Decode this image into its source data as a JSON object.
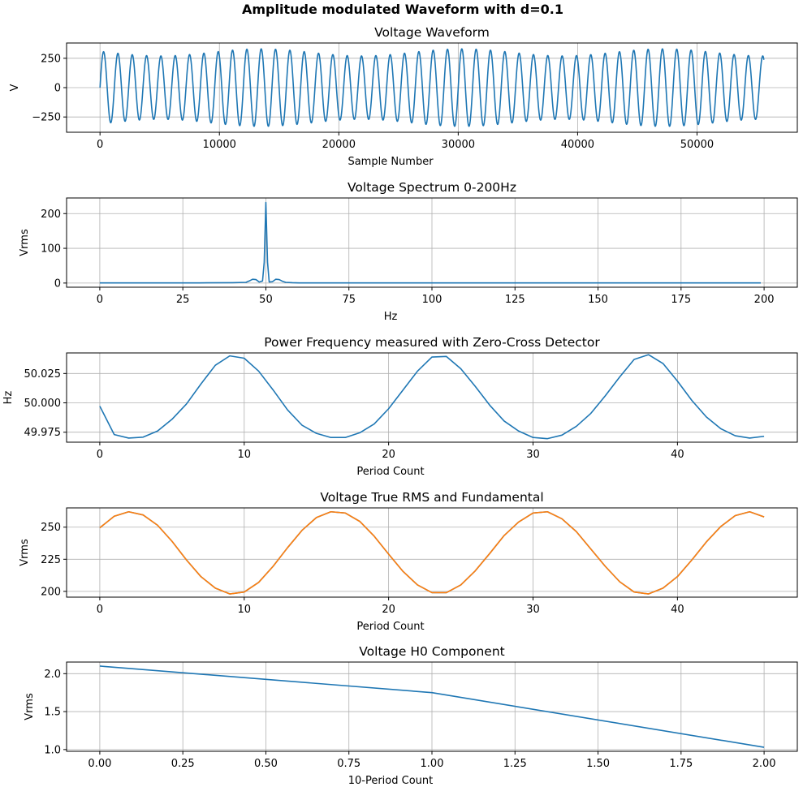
{
  "figure": {
    "title": "Amplitude modulated Waveform with d=0.1"
  },
  "colors": {
    "series_blue": "#1f77b4",
    "series_orange": "#ff7f0e",
    "grid": "#b0b0b0",
    "axes": "#000000",
    "background": "#ffffff"
  },
  "chart_data": [
    {
      "type": "line",
      "title": "Voltage Waveform",
      "xlabel": "Sample Number",
      "ylabel": "V",
      "xlim": [
        -2800,
        58400
      ],
      "ylim": [
        -380,
        380
      ],
      "xticks": [
        0,
        10000,
        20000,
        30000,
        40000,
        50000
      ],
      "xticklabels": [
        "0",
        "10000",
        "20000",
        "30000",
        "40000",
        "50000"
      ],
      "yticks": [
        -250,
        0,
        250
      ],
      "yticklabels": [
        "−250",
        "0",
        "250"
      ],
      "grid": true,
      "generator": {
        "kind": "am_sine",
        "samples": 55600,
        "carrier_cycles": 46.33,
        "peak_amplitude": 330,
        "modulation_depth": 0.1,
        "modulation_cycles": 3.3,
        "modulation_phase": 0.45
      },
      "series": [
        {
          "x": [],
          "y": [],
          "color": "#1f77b4"
        }
      ]
    },
    {
      "type": "line",
      "title": "Voltage Spectrum 0-200Hz",
      "xlabel": "Hz",
      "ylabel": "Vrms",
      "xlim": [
        -10,
        210
      ],
      "ylim": [
        -12,
        245
      ],
      "xticks": [
        0,
        25,
        50,
        75,
        100,
        125,
        150,
        175,
        200
      ],
      "xticklabels": [
        "0",
        "25",
        "50",
        "75",
        "100",
        "125",
        "150",
        "175",
        "200"
      ],
      "yticks": [
        0,
        100,
        200
      ],
      "yticklabels": [
        "0",
        "100",
        "200"
      ],
      "grid": true,
      "series": [
        {
          "color": "#1f77b4",
          "x": [
            0,
            10,
            20,
            30,
            40,
            44,
            45,
            46,
            47,
            48,
            49,
            49.5,
            50,
            50.5,
            51,
            52,
            53,
            54,
            55,
            56,
            58,
            60,
            70,
            80,
            100,
            150,
            199
          ],
          "y": [
            0.5,
            0.5,
            0.5,
            0.5,
            1,
            2,
            6,
            11,
            10,
            3,
            6,
            60,
            232,
            60,
            3,
            4,
            11,
            10,
            5,
            2,
            1,
            0.5,
            0.5,
            0.5,
            0.5,
            0.5,
            0.5
          ]
        }
      ]
    },
    {
      "type": "line",
      "title": "Power Frequency measured with Zero-Cross Detector",
      "xlabel": "Period Count",
      "ylabel": "Hz",
      "xlim": [
        -2.3,
        48.3
      ],
      "ylim": [
        49.9665,
        50.0425
      ],
      "xticks": [
        0,
        10,
        20,
        30,
        40
      ],
      "xticklabels": [
        "0",
        "10",
        "20",
        "30",
        "40"
      ],
      "yticks": [
        49.975,
        50.0,
        50.025
      ],
      "yticklabels": [
        "49.975",
        "50.000",
        "50.025"
      ],
      "grid": true,
      "series": [
        {
          "color": "#1f77b4",
          "x": [
            0,
            1,
            2,
            3,
            4,
            5,
            6,
            7,
            8,
            9,
            10,
            11,
            12,
            13,
            14,
            15,
            16,
            17,
            18,
            19,
            20,
            21,
            22,
            23,
            24,
            25,
            26,
            27,
            28,
            29,
            30,
            31,
            32,
            33,
            34,
            35,
            36,
            37,
            38,
            39,
            40,
            41,
            42,
            43,
            44,
            45,
            46
          ],
          "y": [
            49.9972,
            49.973,
            49.97,
            49.9708,
            49.976,
            49.986,
            49.999,
            50.016,
            50.032,
            50.04,
            50.038,
            50.027,
            50.011,
            49.994,
            49.981,
            49.974,
            49.9705,
            49.9705,
            49.9745,
            49.982,
            49.995,
            50.011,
            50.027,
            50.039,
            50.0395,
            50.029,
            50.014,
            49.998,
            49.9845,
            49.976,
            49.9705,
            49.9695,
            49.9725,
            49.98,
            49.991,
            50.006,
            50.022,
            50.037,
            50.041,
            50.0335,
            50.0185,
            50.002,
            49.988,
            49.978,
            49.972,
            49.97,
            49.9715
          ]
        }
      ]
    },
    {
      "type": "line",
      "title": "Voltage True RMS and Fundamental",
      "xlabel": "Period Count",
      "ylabel": "Vrms",
      "xlim": [
        -2.3,
        48.3
      ],
      "ylim": [
        195.5,
        265.0
      ],
      "xticks": [
        0,
        10,
        20,
        30,
        40
      ],
      "xticklabels": [
        "0",
        "10",
        "20",
        "30",
        "40"
      ],
      "yticks": [
        200,
        225,
        250
      ],
      "yticklabels": [
        "200",
        "225",
        "250"
      ],
      "grid": true,
      "series": [
        {
          "color": "#1f77b4",
          "x": [
            0,
            1,
            2,
            3,
            4,
            5,
            6,
            7,
            8,
            9,
            10,
            11,
            12,
            13,
            14,
            15,
            16,
            17,
            18,
            19,
            20,
            21,
            22,
            23,
            24,
            25,
            26,
            27,
            28,
            29,
            30,
            31,
            32,
            33,
            34,
            35,
            36,
            37,
            38,
            39,
            40,
            41,
            42,
            43,
            44,
            45,
            46
          ],
          "y": [
            249.5,
            258.5,
            262.0,
            259.5,
            251.5,
            239.0,
            224.5,
            211.5,
            202.5,
            198.0,
            199.5,
            207.0,
            219.5,
            234.0,
            247.5,
            257.5,
            262.0,
            261.0,
            254.5,
            243.0,
            229.0,
            215.5,
            205.0,
            199.0,
            199.0,
            205.0,
            216.0,
            229.5,
            243.5,
            254.0,
            261.0,
            262.0,
            256.5,
            246.5,
            233.0,
            219.5,
            207.5,
            199.5,
            198.0,
            202.5,
            211.5,
            224.5,
            238.5,
            250.5,
            259.0,
            262.0,
            258.0
          ]
        },
        {
          "color": "#ff7f0e",
          "x": [
            0,
            1,
            2,
            3,
            4,
            5,
            6,
            7,
            8,
            9,
            10,
            11,
            12,
            13,
            14,
            15,
            16,
            17,
            18,
            19,
            20,
            21,
            22,
            23,
            24,
            25,
            26,
            27,
            28,
            29,
            30,
            31,
            32,
            33,
            34,
            35,
            36,
            37,
            38,
            39,
            40,
            41,
            42,
            43,
            44,
            45,
            46
          ],
          "y": [
            249.5,
            258.5,
            262.0,
            259.5,
            251.5,
            239.0,
            224.5,
            211.5,
            202.5,
            198.0,
            199.5,
            207.0,
            219.5,
            234.0,
            247.5,
            257.5,
            262.0,
            261.0,
            254.5,
            243.0,
            229.0,
            215.5,
            205.0,
            199.0,
            199.0,
            205.0,
            216.0,
            229.5,
            243.5,
            254.0,
            261.0,
            262.0,
            256.5,
            246.5,
            233.0,
            219.5,
            207.5,
            199.5,
            198.0,
            202.5,
            211.5,
            224.5,
            238.5,
            250.5,
            259.0,
            262.0,
            258.0
          ]
        }
      ]
    },
    {
      "type": "line",
      "title": "Voltage H0 Component",
      "xlabel": "10-Period Count",
      "ylabel": "Vrms",
      "xlim": [
        -0.1,
        2.1
      ],
      "ylim": [
        0.977,
        2.153
      ],
      "xticks": [
        0.0,
        0.25,
        0.5,
        0.75,
        1.0,
        1.25,
        1.5,
        1.75,
        2.0
      ],
      "xticklabels": [
        "0.00",
        "0.25",
        "0.50",
        "0.75",
        "1.00",
        "1.25",
        "1.50",
        "1.75",
        "2.00"
      ],
      "yticks": [
        1.0,
        1.5,
        2.0
      ],
      "yticklabels": [
        "1.0",
        "1.5",
        "2.0"
      ],
      "grid": true,
      "series": [
        {
          "color": "#1f77b4",
          "x": [
            0,
            1,
            2
          ],
          "y": [
            2.1,
            1.75,
            1.03
          ]
        }
      ]
    }
  ]
}
